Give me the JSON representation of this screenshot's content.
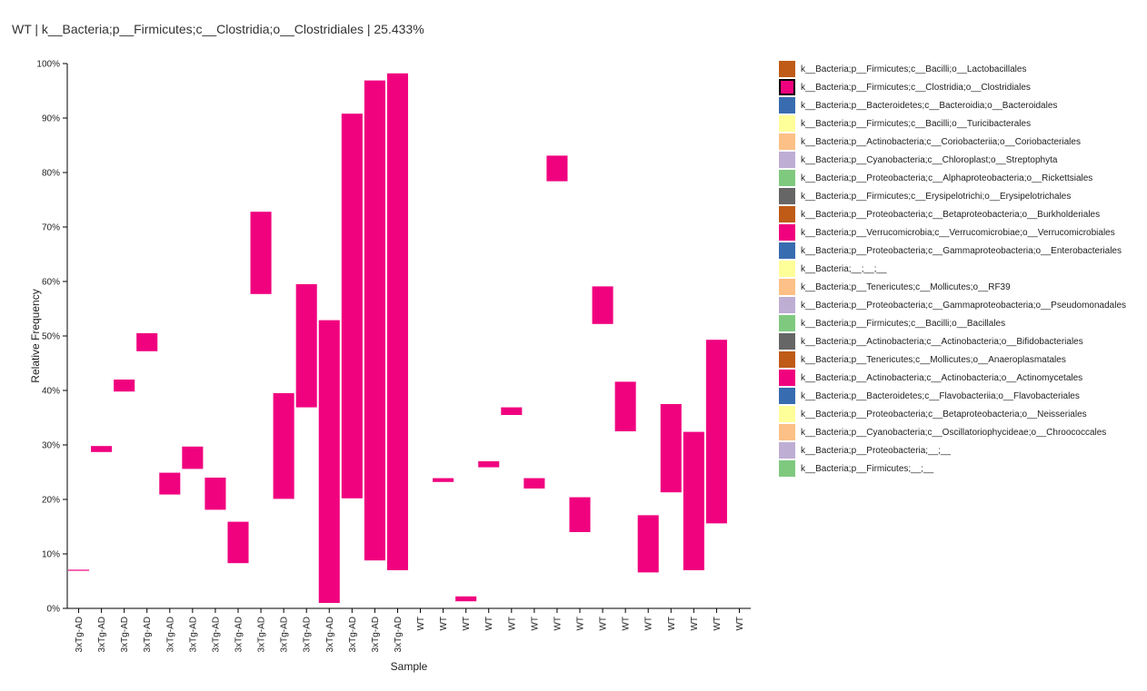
{
  "title": "WT | k__Bacteria;p__Firmicutes;c__Clostridia;o__Clostridiales | 25.433%",
  "chart_data": {
    "type": "bar",
    "subtype": "floating-stacked-segment",
    "xlabel": "Sample",
    "ylabel": "Relative Frequency",
    "ylim": [
      0,
      100
    ],
    "yticks": [
      0,
      10,
      20,
      30,
      40,
      50,
      60,
      70,
      80,
      90,
      100
    ],
    "ytick_format": "%",
    "grid": false,
    "legend_position": "right",
    "highlight_color": "#f0027f",
    "categories": [
      "3xTg-AD",
      "3xTg-AD",
      "3xTg-AD",
      "3xTg-AD",
      "3xTg-AD",
      "3xTg-AD",
      "3xTg-AD",
      "3xTg-AD",
      "3xTg-AD",
      "3xTg-AD",
      "3xTg-AD",
      "3xTg-AD",
      "3xTg-AD",
      "3xTg-AD",
      "3xTg-AD",
      "WT",
      "WT",
      "WT",
      "WT",
      "WT",
      "WT",
      "WT",
      "WT",
      "WT",
      "WT",
      "WT",
      "WT",
      "WT",
      "WT",
      "WT"
    ],
    "series": [
      {
        "name": "k__Bacteria;p__Firmicutes;c__Clostridia;o__Clostridiales",
        "color": "#f0027f",
        "segments": [
          [
            6.9,
            7.1
          ],
          [
            28.7,
            29.8
          ],
          [
            39.8,
            42.0
          ],
          [
            47.2,
            50.5
          ],
          [
            20.9,
            24.9
          ],
          [
            25.6,
            29.7
          ],
          [
            18.1,
            24.0
          ],
          [
            8.3,
            15.9
          ],
          [
            57.7,
            72.8
          ],
          [
            20.1,
            39.5
          ],
          [
            36.9,
            59.5
          ],
          [
            1.0,
            52.9
          ],
          [
            20.2,
            90.8
          ],
          [
            8.8,
            96.9
          ],
          [
            7.0,
            98.2
          ],
          [
            0,
            0
          ],
          [
            23.2,
            23.9
          ],
          [
            1.3,
            2.2
          ],
          [
            25.9,
            27.0
          ],
          [
            35.5,
            36.9
          ],
          [
            22.0,
            23.9
          ],
          [
            78.4,
            83.1
          ],
          [
            14.0,
            20.4
          ],
          [
            52.2,
            59.1
          ],
          [
            32.5,
            41.6
          ],
          [
            6.6,
            17.1
          ],
          [
            21.3,
            37.5
          ],
          [
            7.0,
            32.4
          ],
          [
            15.6,
            49.3
          ],
          [
            0,
            0
          ]
        ]
      }
    ],
    "legend": [
      {
        "label": "k__Bacteria;p__Firmicutes;c__Bacilli;o__Lactobacillales",
        "color": "#bf5b17"
      },
      {
        "label": "k__Bacteria;p__Firmicutes;c__Clostridia;o__Clostridiales",
        "color": "#f0027f",
        "selected": true
      },
      {
        "label": "k__Bacteria;p__Bacteroidetes;c__Bacteroidia;o__Bacteroidales",
        "color": "#386cb0"
      },
      {
        "label": "k__Bacteria;p__Firmicutes;c__Bacilli;o__Turicibacterales",
        "color": "#ffff99"
      },
      {
        "label": "k__Bacteria;p__Actinobacteria;c__Coriobacteriia;o__Coriobacteriales",
        "color": "#fdc086"
      },
      {
        "label": "k__Bacteria;p__Cyanobacteria;c__Chloroplast;o__Streptophyta",
        "color": "#beaed4"
      },
      {
        "label": "k__Bacteria;p__Proteobacteria;c__Alphaproteobacteria;o__Rickettsiales",
        "color": "#7fc97f"
      },
      {
        "label": "k__Bacteria;p__Firmicutes;c__Erysipelotrichi;o__Erysipelotrichales",
        "color": "#666666"
      },
      {
        "label": "k__Bacteria;p__Proteobacteria;c__Betaproteobacteria;o__Burkholderiales",
        "color": "#bf5b17"
      },
      {
        "label": "k__Bacteria;p__Verrucomicrobia;c__Verrucomicrobiae;o__Verrucomicrobiales",
        "color": "#f0027f"
      },
      {
        "label": "k__Bacteria;p__Proteobacteria;c__Gammaproteobacteria;o__Enterobacteriales",
        "color": "#386cb0"
      },
      {
        "label": "k__Bacteria;__;__;__",
        "color": "#ffff99"
      },
      {
        "label": "k__Bacteria;p__Tenericutes;c__Mollicutes;o__RF39",
        "color": "#fdc086"
      },
      {
        "label": "k__Bacteria;p__Proteobacteria;c__Gammaproteobacteria;o__Pseudomonadales",
        "color": "#beaed4"
      },
      {
        "label": "k__Bacteria;p__Firmicutes;c__Bacilli;o__Bacillales",
        "color": "#7fc97f"
      },
      {
        "label": "k__Bacteria;p__Actinobacteria;c__Actinobacteria;o__Bifidobacteriales",
        "color": "#666666"
      },
      {
        "label": "k__Bacteria;p__Tenericutes;c__Mollicutes;o__Anaeroplasmatales",
        "color": "#bf5b17"
      },
      {
        "label": "k__Bacteria;p__Actinobacteria;c__Actinobacteria;o__Actinomycetales",
        "color": "#f0027f"
      },
      {
        "label": "k__Bacteria;p__Bacteroidetes;c__Flavobacteriia;o__Flavobacteriales",
        "color": "#386cb0"
      },
      {
        "label": "k__Bacteria;p__Proteobacteria;c__Betaproteobacteria;o__Neisseriales",
        "color": "#ffff99"
      },
      {
        "label": "k__Bacteria;p__Cyanobacteria;c__Oscillatoriophycideae;o__Chroococcales",
        "color": "#fdc086"
      },
      {
        "label": "k__Bacteria;p__Proteobacteria;__;__",
        "color": "#beaed4"
      },
      {
        "label": "k__Bacteria;p__Firmicutes;__;__",
        "color": "#7fc97f"
      }
    ]
  }
}
